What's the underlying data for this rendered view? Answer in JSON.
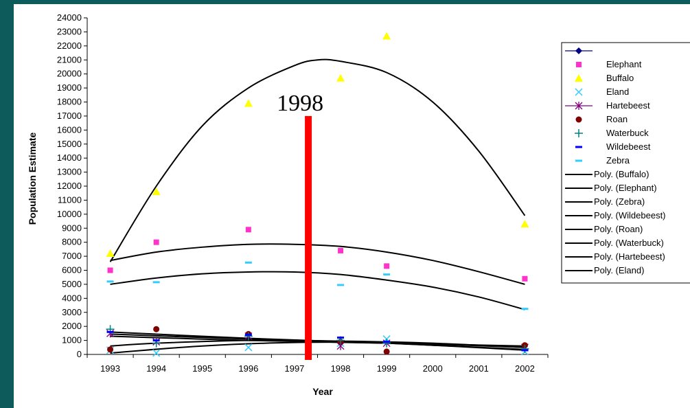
{
  "chart_data": {
    "type": "scatter",
    "xlabel": "Year",
    "ylabel": "Population Estimate",
    "x": [
      "1993",
      "1994",
      "1995",
      "1996",
      "1997",
      "1998",
      "1999",
      "2000",
      "2001",
      "2002"
    ],
    "ylim": [
      0,
      24000
    ],
    "yticks": [
      0,
      1000,
      2000,
      3000,
      4000,
      5000,
      6000,
      7000,
      8000,
      9000,
      10000,
      11000,
      12000,
      13000,
      14000,
      15000,
      16000,
      17000,
      18000,
      19000,
      20000,
      21000,
      22000,
      23000,
      24000
    ],
    "grid": false,
    "legend_position": "right",
    "annotation": {
      "label": "1998",
      "x_index": 4.3,
      "y_top": 17000,
      "color": "#ff0000"
    },
    "series": [
      {
        "name": "",
        "marker": "diamond",
        "color": "#000080",
        "points": []
      },
      {
        "name": "Elephant",
        "marker": "square",
        "color": "#ff33cc",
        "points": [
          [
            0,
            6000
          ],
          [
            1,
            8000
          ],
          [
            3,
            8900
          ],
          [
            5,
            7400
          ],
          [
            6,
            6300
          ],
          [
            9,
            5400
          ]
        ]
      },
      {
        "name": "Buffalo",
        "marker": "triangle",
        "color": "#ffff00",
        "points": [
          [
            0,
            7200
          ],
          [
            1,
            11600
          ],
          [
            3,
            17900
          ],
          [
            5,
            19700
          ],
          [
            6,
            22700
          ],
          [
            9,
            9300
          ]
        ]
      },
      {
        "name": "Eland",
        "marker": "x",
        "color": "#33ccff",
        "points": [
          [
            0,
            300
          ],
          [
            1,
            100
          ],
          [
            3,
            500
          ],
          [
            5,
            800
          ],
          [
            6,
            1100
          ],
          [
            9,
            200
          ]
        ]
      },
      {
        "name": "Hartebeest",
        "marker": "star",
        "color": "#800080",
        "points": [
          [
            0,
            1500
          ],
          [
            1,
            900
          ],
          [
            3,
            1300
          ],
          [
            5,
            600
          ],
          [
            6,
            800
          ],
          [
            9,
            500
          ]
        ]
      },
      {
        "name": "Roan",
        "marker": "circle",
        "color": "#800000",
        "points": [
          [
            0,
            350
          ],
          [
            1,
            1800
          ],
          [
            3,
            1450
          ],
          [
            5,
            900
          ],
          [
            6,
            200
          ],
          [
            9,
            650
          ]
        ]
      },
      {
        "name": "Waterbuck",
        "marker": "plus",
        "color": "#008080",
        "points": [
          [
            0,
            1800
          ],
          [
            1,
            800
          ],
          [
            3,
            1300
          ],
          [
            5,
            1000
          ],
          [
            6,
            800
          ],
          [
            9,
            400
          ]
        ]
      },
      {
        "name": "Wildebeest",
        "marker": "dash",
        "color": "#0000ff",
        "points": [
          [
            0,
            1600
          ],
          [
            1,
            1000
          ],
          [
            3,
            1400
          ],
          [
            5,
            1200
          ],
          [
            6,
            900
          ],
          [
            9,
            300
          ]
        ]
      },
      {
        "name": "Zebra",
        "marker": "dash",
        "color": "#33ccff",
        "points": [
          [
            0,
            5200
          ],
          [
            1,
            5150
          ],
          [
            3,
            6550
          ],
          [
            5,
            4950
          ],
          [
            6,
            5700
          ],
          [
            9,
            3250
          ]
        ]
      }
    ],
    "trendlines": [
      {
        "name": "Poly. (Buffalo)",
        "points": [
          [
            0,
            6600
          ],
          [
            1,
            12000
          ],
          [
            2,
            16300
          ],
          [
            3,
            19000
          ],
          [
            4,
            20600
          ],
          [
            4.5,
            21000
          ],
          [
            5,
            20900
          ],
          [
            6,
            20100
          ],
          [
            7,
            18000
          ],
          [
            8,
            14500
          ],
          [
            9,
            9900
          ]
        ]
      },
      {
        "name": "Poly. (Elephant)",
        "points": [
          [
            0,
            6700
          ],
          [
            1,
            7300
          ],
          [
            2,
            7650
          ],
          [
            3,
            7850
          ],
          [
            4,
            7850
          ],
          [
            5,
            7700
          ],
          [
            6,
            7300
          ],
          [
            7,
            6700
          ],
          [
            8,
            5900
          ],
          [
            9,
            5000
          ]
        ]
      },
      {
        "name": "Poly. (Zebra)",
        "points": [
          [
            0,
            5000
          ],
          [
            1,
            5450
          ],
          [
            2,
            5750
          ],
          [
            3,
            5880
          ],
          [
            4,
            5880
          ],
          [
            5,
            5700
          ],
          [
            6,
            5300
          ],
          [
            7,
            4800
          ],
          [
            8,
            4100
          ],
          [
            9,
            3200
          ]
        ]
      },
      {
        "name": "Poly. (Wildebeest)",
        "points": [
          [
            0,
            1450
          ],
          [
            3,
            1100
          ],
          [
            6,
            850
          ],
          [
            9,
            500
          ]
        ]
      },
      {
        "name": "Poly. (Roan)",
        "points": [
          [
            0,
            600
          ],
          [
            1,
            800
          ],
          [
            3,
            1000
          ],
          [
            5,
            950
          ],
          [
            7,
            800
          ],
          [
            9,
            500
          ]
        ]
      },
      {
        "name": "Poly. (Waterbuck)",
        "points": [
          [
            0,
            1600
          ],
          [
            3,
            1150
          ],
          [
            6,
            800
          ],
          [
            9,
            350
          ]
        ]
      },
      {
        "name": "Poly. (Hartebeest)",
        "points": [
          [
            0,
            1300
          ],
          [
            3,
            1000
          ],
          [
            6,
            800
          ],
          [
            9,
            600
          ]
        ]
      },
      {
        "name": "Poly. (Eland)",
        "points": [
          [
            0,
            100
          ],
          [
            2,
            600
          ],
          [
            4,
            850
          ],
          [
            6,
            800
          ],
          [
            9,
            300
          ]
        ]
      }
    ]
  }
}
